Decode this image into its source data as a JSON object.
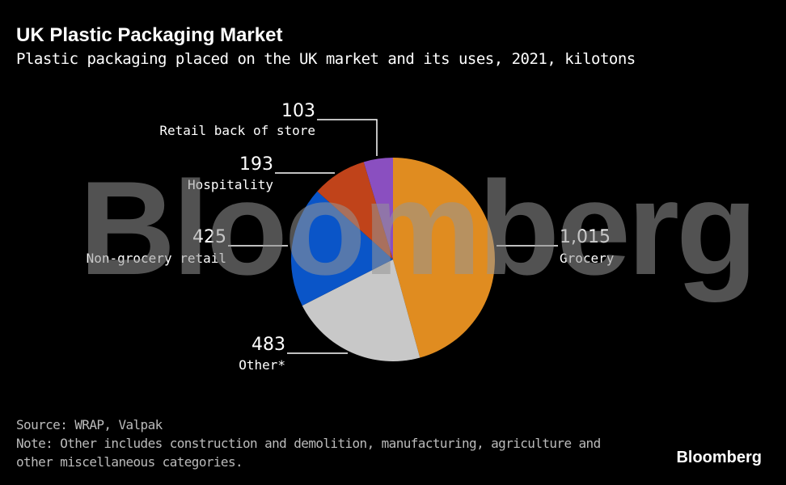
{
  "title": "UK Plastic Packaging Market",
  "subtitle": "Plastic packaging placed on the UK market and its uses, 2021, kilotons",
  "chart_data": {
    "type": "pie",
    "title": "UK Plastic Packaging Market",
    "start": "top, clockwise",
    "slices": [
      {
        "label": "Grocery",
        "value": 1015,
        "value_label": "1,015",
        "color": "#e08c20"
      },
      {
        "label": "Other*",
        "value": 483,
        "value_label": "483",
        "color": "#c8c8c8"
      },
      {
        "label": "Non-grocery retail",
        "value": 425,
        "value_label": "425",
        "color": "#0a55c8"
      },
      {
        "label": "Hospitality",
        "value": 193,
        "value_label": "193",
        "color": "#c0431a"
      },
      {
        "label": "Retail back of store",
        "value": 103,
        "value_label": "103",
        "color": "#8a4fc0"
      }
    ]
  },
  "source": "Source: WRAP, Valpak",
  "note_line1": "Note: Other includes construction and demolition, manufacturing, agriculture and",
  "note_line2": "other miscellaneous categories.",
  "logo": "Bloomberg",
  "watermark": "Bloomberg"
}
